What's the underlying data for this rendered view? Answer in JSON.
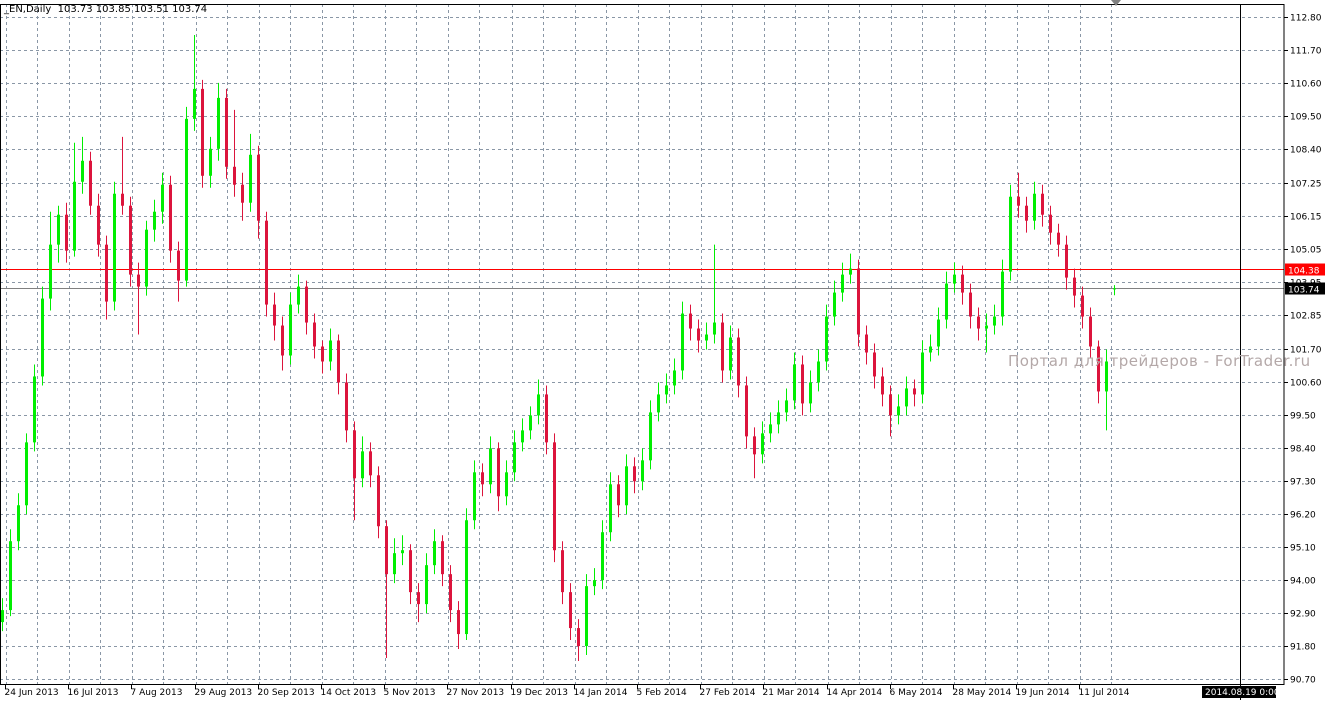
{
  "header": {
    "symbol": "_EN,Daily",
    "ohlc": "103.73 103.85 103.51 103.74"
  },
  "watermark": "Портал для трейдеров - ForTrader.ru",
  "colors": {
    "bull": "#00ee00",
    "bear": "#dc143c",
    "grid": "#8a97a6",
    "bid_line": "#ff0000",
    "last_line": "#808080",
    "background": "#ffffff"
  },
  "chart_data": {
    "type": "candlestick",
    "title": "_EN,Daily",
    "ylim": [
      90.7,
      112.8
    ],
    "grid": true,
    "y_ticks": [
      "112.80",
      "111.70",
      "110.60",
      "109.50",
      "108.40",
      "107.25",
      "106.15",
      "105.05",
      "103.95",
      "102.85",
      "101.70",
      "100.60",
      "99.50",
      "98.40",
      "97.30",
      "96.20",
      "95.10",
      "94.00",
      "92.90",
      "91.80",
      "90.70"
    ],
    "x_labels": [
      "24 Jun 2013",
      "16 Jul 2013",
      "7 Aug 2013",
      "29 Aug 2013",
      "20 Sep 2013",
      "14 Oct 2013",
      "5 Nov 2013",
      "27 Nov 2013",
      "19 Dec 2013",
      "14 Jan 2014",
      "5 Feb 2014",
      "27 Feb 2014",
      "21 Mar 2014",
      "14 Apr 2014",
      "6 May 2014",
      "28 May 2014",
      "19 Jun 2014",
      "11 Jul 2014"
    ],
    "crosshair_date": "2014.08.19 0:00",
    "hlines": [
      {
        "price": 104.38,
        "label": "104.38",
        "color": "#ff0000"
      },
      {
        "price": 103.74,
        "label": "103.74",
        "color": "#808080"
      }
    ],
    "candles": [
      [
        92.6,
        93.4,
        92.3,
        93.0
      ],
      [
        93.0,
        95.7,
        92.8,
        95.3
      ],
      [
        95.3,
        96.9,
        95.0,
        96.5
      ],
      [
        96.5,
        98.9,
        96.2,
        98.6
      ],
      [
        98.6,
        101.2,
        98.3,
        100.8
      ],
      [
        100.8,
        103.8,
        100.5,
        103.4
      ],
      [
        103.4,
        106.3,
        103.0,
        105.2
      ],
      [
        105.2,
        106.5,
        104.6,
        106.2
      ],
      [
        106.2,
        106.6,
        104.6,
        105.0
      ],
      [
        105.0,
        108.6,
        104.8,
        107.3
      ],
      [
        107.3,
        108.8,
        106.9,
        108.0
      ],
      [
        108.0,
        108.3,
        106.2,
        106.5
      ],
      [
        106.5,
        106.9,
        104.8,
        105.2
      ],
      [
        105.2,
        105.5,
        102.7,
        103.3
      ],
      [
        103.3,
        107.3,
        103.0,
        106.9
      ],
      [
        106.9,
        108.8,
        106.2,
        106.5
      ],
      [
        106.5,
        106.8,
        103.8,
        104.2
      ],
      [
        104.2,
        104.6,
        102.2,
        103.8
      ],
      [
        103.8,
        106.0,
        103.5,
        105.7
      ],
      [
        105.7,
        106.7,
        105.3,
        106.3
      ],
      [
        106.3,
        107.6,
        105.9,
        107.2
      ],
      [
        107.2,
        107.5,
        104.6,
        105.0
      ],
      [
        105.0,
        105.3,
        103.3,
        104.0
      ],
      [
        104.0,
        109.8,
        103.8,
        109.4
      ],
      [
        109.4,
        112.2,
        109.0,
        110.4
      ],
      [
        110.4,
        110.7,
        107.1,
        107.5
      ],
      [
        107.5,
        108.8,
        107.1,
        108.4
      ],
      [
        108.4,
        110.6,
        108.0,
        110.1
      ],
      [
        110.1,
        110.4,
        107.4,
        107.8
      ],
      [
        107.8,
        109.7,
        106.8,
        107.2
      ],
      [
        107.2,
        107.6,
        106.0,
        106.6
      ],
      [
        106.6,
        108.9,
        106.3,
        108.2
      ],
      [
        108.2,
        108.5,
        105.4,
        106.0
      ],
      [
        106.0,
        106.3,
        102.8,
        103.2
      ],
      [
        103.2,
        103.6,
        102.0,
        102.5
      ],
      [
        102.5,
        102.8,
        101.0,
        101.5
      ],
      [
        101.5,
        103.6,
        101.2,
        103.2
      ],
      [
        103.2,
        104.2,
        102.9,
        103.8
      ],
      [
        103.8,
        104.0,
        102.2,
        102.6
      ],
      [
        102.6,
        102.9,
        101.4,
        101.8
      ],
      [
        101.8,
        102.0,
        100.9,
        101.3
      ],
      [
        101.3,
        102.4,
        101.0,
        102.0
      ],
      [
        102.0,
        102.2,
        100.2,
        100.6
      ],
      [
        100.6,
        100.9,
        98.6,
        99.0
      ],
      [
        99.0,
        99.3,
        96.0,
        97.4
      ],
      [
        97.4,
        98.8,
        97.1,
        98.3
      ],
      [
        98.3,
        98.6,
        97.1,
        97.5
      ],
      [
        97.5,
        97.8,
        95.4,
        95.8
      ],
      [
        95.8,
        96.0,
        91.4,
        94.2
      ],
      [
        94.2,
        95.4,
        93.9,
        94.9
      ],
      [
        94.9,
        95.5,
        94.5,
        95.0
      ],
      [
        95.0,
        95.2,
        93.2,
        93.6
      ],
      [
        93.6,
        93.9,
        92.6,
        93.2
      ],
      [
        93.2,
        94.9,
        92.9,
        94.5
      ],
      [
        94.5,
        95.7,
        94.2,
        95.3
      ],
      [
        95.3,
        95.5,
        93.8,
        94.2
      ],
      [
        94.2,
        94.5,
        92.6,
        93.0
      ],
      [
        93.0,
        93.3,
        91.7,
        92.2
      ],
      [
        92.2,
        96.4,
        92.0,
        96.0
      ],
      [
        96.0,
        98.0,
        95.7,
        97.6
      ],
      [
        97.6,
        97.9,
        96.8,
        97.2
      ],
      [
        97.2,
        98.8,
        96.9,
        98.4
      ],
      [
        98.4,
        98.6,
        96.3,
        96.8
      ],
      [
        96.8,
        98.0,
        96.5,
        97.6
      ],
      [
        97.6,
        99.0,
        97.3,
        98.6
      ],
      [
        98.6,
        99.4,
        98.3,
        99.0
      ],
      [
        99.0,
        99.8,
        98.7,
        99.5
      ],
      [
        99.5,
        100.7,
        99.2,
        100.2
      ],
      [
        100.2,
        100.5,
        98.2,
        98.6
      ],
      [
        98.6,
        98.9,
        94.6,
        95.0
      ],
      [
        95.0,
        95.3,
        93.2,
        93.6
      ],
      [
        93.6,
        93.9,
        92.0,
        92.4
      ],
      [
        92.4,
        92.7,
        91.3,
        91.8
      ],
      [
        91.8,
        94.2,
        91.5,
        93.8
      ],
      [
        93.8,
        94.4,
        93.5,
        94.0
      ],
      [
        94.0,
        96.0,
        93.7,
        95.6
      ],
      [
        95.6,
        97.6,
        95.3,
        97.2
      ],
      [
        97.2,
        97.5,
        96.1,
        96.5
      ],
      [
        96.5,
        98.2,
        96.2,
        97.8
      ],
      [
        97.8,
        98.1,
        96.9,
        97.3
      ],
      [
        97.3,
        98.4,
        97.0,
        98.0
      ],
      [
        98.0,
        100.0,
        97.7,
        99.6
      ],
      [
        99.6,
        100.6,
        99.3,
        100.2
      ],
      [
        100.2,
        100.9,
        99.9,
        100.5
      ],
      [
        100.5,
        101.4,
        100.2,
        101.0
      ],
      [
        101.0,
        103.3,
        100.7,
        102.9
      ],
      [
        102.9,
        103.2,
        102.0,
        102.4
      ],
      [
        102.4,
        102.7,
        101.6,
        102.0
      ],
      [
        102.0,
        102.6,
        101.7,
        102.2
      ],
      [
        102.2,
        105.2,
        101.9,
        102.6
      ],
      [
        102.6,
        102.9,
        100.6,
        101.0
      ],
      [
        101.0,
        102.5,
        100.7,
        102.1
      ],
      [
        102.1,
        102.4,
        100.1,
        100.5
      ],
      [
        100.5,
        100.8,
        98.4,
        98.8
      ],
      [
        98.8,
        99.1,
        97.4,
        98.2
      ],
      [
        98.2,
        99.3,
        97.9,
        98.9
      ],
      [
        98.9,
        99.6,
        98.6,
        99.2
      ],
      [
        99.2,
        100.0,
        98.9,
        99.6
      ],
      [
        99.6,
        100.4,
        99.3,
        100.0
      ],
      [
        100.0,
        101.6,
        99.7,
        101.2
      ],
      [
        101.2,
        101.5,
        99.5,
        99.9
      ],
      [
        99.9,
        101.0,
        99.6,
        100.6
      ],
      [
        100.6,
        101.7,
        100.3,
        101.3
      ],
      [
        101.3,
        103.2,
        101.0,
        102.8
      ],
      [
        102.8,
        104.0,
        102.5,
        103.6
      ],
      [
        103.6,
        104.6,
        103.3,
        104.2
      ],
      [
        104.2,
        104.9,
        103.9,
        104.4
      ],
      [
        104.4,
        104.7,
        101.8,
        102.2
      ],
      [
        102.2,
        102.5,
        101.2,
        101.6
      ],
      [
        101.6,
        101.9,
        100.4,
        100.8
      ],
      [
        100.8,
        101.1,
        99.8,
        100.2
      ],
      [
        100.2,
        100.5,
        98.8,
        99.5
      ],
      [
        99.5,
        100.2,
        99.2,
        99.8
      ],
      [
        99.8,
        100.8,
        99.5,
        100.4
      ],
      [
        100.4,
        100.7,
        99.8,
        100.2
      ],
      [
        100.2,
        102.0,
        99.9,
        101.6
      ],
      [
        101.6,
        102.2,
        101.3,
        101.8
      ],
      [
        101.8,
        103.1,
        101.5,
        102.7
      ],
      [
        102.7,
        104.3,
        102.4,
        103.9
      ],
      [
        103.9,
        104.6,
        103.6,
        104.2
      ],
      [
        104.2,
        104.5,
        103.2,
        103.6
      ],
      [
        103.6,
        103.9,
        102.4,
        102.8
      ],
      [
        102.8,
        103.1,
        102.0,
        102.4
      ],
      [
        102.4,
        102.9,
        101.6,
        102.5
      ],
      [
        102.5,
        103.2,
        102.2,
        102.8
      ],
      [
        102.8,
        104.7,
        102.5,
        104.3
      ],
      [
        104.3,
        107.2,
        104.0,
        106.8
      ],
      [
        106.8,
        107.6,
        106.1,
        106.5
      ],
      [
        106.5,
        106.8,
        105.6,
        106.0
      ],
      [
        106.0,
        107.3,
        105.7,
        106.9
      ],
      [
        106.9,
        107.2,
        105.8,
        106.2
      ],
      [
        106.2,
        106.5,
        105.2,
        105.6
      ],
      [
        105.6,
        105.9,
        104.8,
        105.2
      ],
      [
        105.2,
        105.5,
        103.7,
        104.1
      ],
      [
        104.1,
        104.4,
        103.1,
        103.5
      ],
      [
        103.5,
        103.8,
        102.4,
        102.8
      ],
      [
        102.8,
        103.1,
        101.4,
        101.8
      ],
      [
        101.8,
        102.0,
        99.9,
        100.3
      ],
      [
        100.3,
        101.7,
        99.0,
        101.3
      ],
      [
        103.73,
        103.85,
        103.51,
        103.74
      ]
    ]
  }
}
